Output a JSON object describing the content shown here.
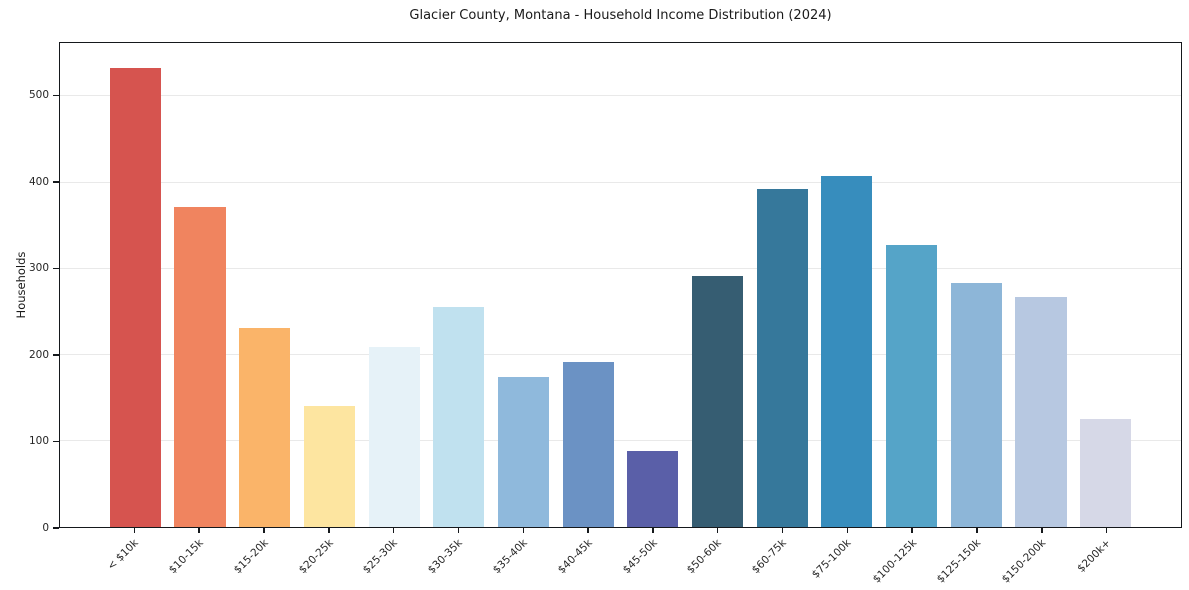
{
  "chart_data": {
    "type": "bar",
    "title": "Glacier County, Montana - Household Income Distribution (2024)",
    "xlabel": "",
    "ylabel": "Households",
    "categories": [
      "< $10k",
      "$10-15k",
      "$15-20k",
      "$20-25k",
      "$25-30k",
      "$30-35k",
      "$35-40k",
      "$40-45k",
      "$45-50k",
      "$50-60k",
      "$60-75k",
      "$75-100k",
      "$100-125k",
      "$125-150k",
      "$150-200k",
      "$200k+"
    ],
    "values": [
      533,
      372,
      231,
      140,
      209,
      256,
      174,
      192,
      88,
      292,
      393,
      408,
      328,
      283,
      267,
      126
    ],
    "bar_colors": [
      "#d6544f",
      "#f0845f",
      "#fab469",
      "#fde5a0",
      "#e6f2f8",
      "#c0e1ef",
      "#8fb9dc",
      "#6b92c4",
      "#5a5fa8",
      "#365d72",
      "#36789b",
      "#378dbd",
      "#55a4c8",
      "#8db6d8",
      "#b7c8e1",
      "#d6d8e7"
    ],
    "ylim": [
      0,
      562
    ],
    "yticks": [
      0,
      100,
      200,
      300,
      400,
      500
    ],
    "grid": "horizontal-only",
    "legend": "none",
    "background_color": "#ffffff",
    "grid_color": "#e9e9e9",
    "spine_color": "#15181c",
    "text_color": "#1a1a1a"
  }
}
